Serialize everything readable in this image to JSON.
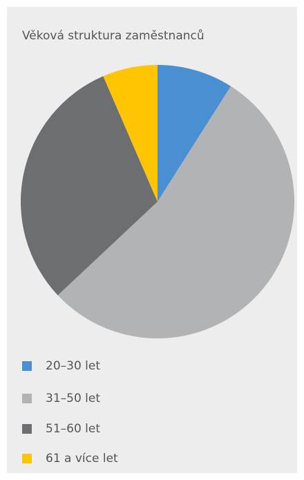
{
  "chart_data": {
    "type": "pie",
    "title": "Věková struktura zaměstnanců",
    "categories": [
      "20–30 let",
      "31–50 let",
      "51–60 let",
      "61 a více let"
    ],
    "values": [
      9,
      54,
      30.5,
      6.5
    ],
    "colors": [
      "#4a8fd1",
      "#b1b3b5",
      "#6d6e71",
      "#fec500"
    ],
    "legend": "bottom"
  }
}
